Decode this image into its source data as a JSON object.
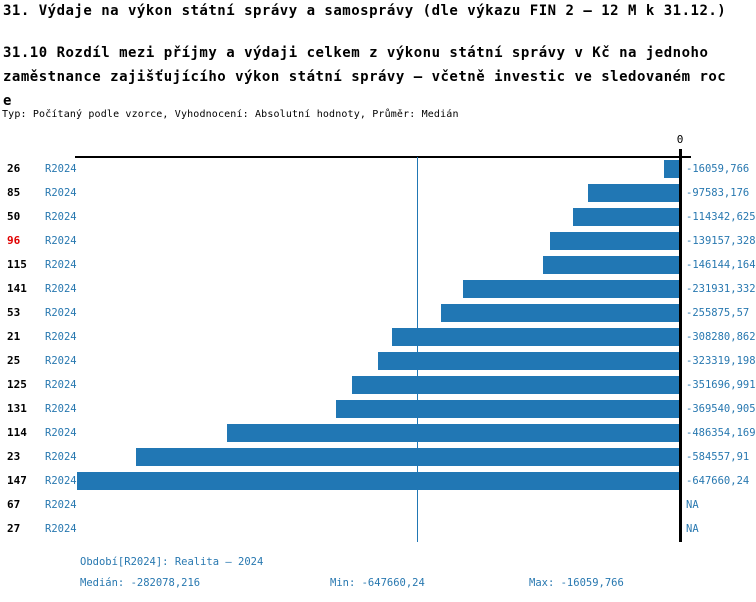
{
  "header": {
    "title": "31. Výdaje na výkon státní správy a samosprávy (dle výkazu FIN 2 – 12 M k 31.12.)",
    "subtitle_lines": [
      "31.10 Rozdíl mezi  příjmy a výdaji celkem z výkonu státní správy v Kč na jednoho",
      "zaměstnance zajišťujícího výkon státní správy – včetně investic ve sledovaném roc",
      "e"
    ],
    "meta": "Typ: Počítaný podle vzorce, Vyhodnocení: Absolutní hodnoty, Průměr: Medián"
  },
  "chart_data": {
    "type": "bar",
    "orientation": "horizontal",
    "axis_zero_label": "0",
    "series_label": "R2024",
    "categories": [
      "26",
      "85",
      "50",
      "96",
      "115",
      "141",
      "53",
      "21",
      "25",
      "125",
      "131",
      "114",
      "23",
      "147",
      "67",
      "27"
    ],
    "values": [
      -16059.766,
      -97583.176,
      -114342.625,
      -139157.328,
      -146144.164,
      -231931.332,
      -255875.57,
      -308280.862,
      -323319.198,
      -351696.991,
      -369540.905,
      -486354.169,
      -584557.91,
      -647660.24,
      null,
      null
    ],
    "value_labels": [
      "-16059,766",
      "-97583,176",
      "-114342,625",
      "-139157,328",
      "-146144,164",
      "-231931,332",
      "-255875,57",
      "-308280,862",
      "-323319,198",
      "-351696,991",
      "-369540,905",
      "-486354,169",
      "-584557,91",
      "-647660,24",
      "NA",
      "NA"
    ],
    "highlighted_category": "96",
    "median": -282078.216,
    "xlim": [
      -647660.24,
      0
    ],
    "grid": false,
    "legend": "none",
    "colors": {
      "bar": "#2177b4",
      "median_line": "#2177b4",
      "value_text": "#2878b0",
      "highlight_label": "#e00000",
      "label_text": "#000000"
    }
  },
  "footer": {
    "period": "Období[R2024]: Realita – 2024",
    "median": "Medián: -282078,216",
    "min": "Min: -647660,24",
    "max": "Max: -16059,766"
  }
}
